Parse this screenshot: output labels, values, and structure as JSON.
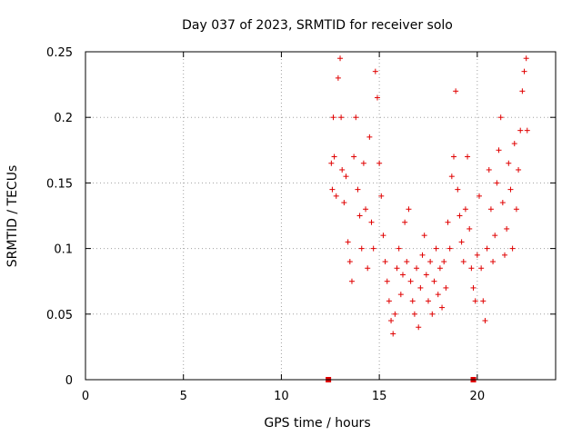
{
  "chart_data": {
    "type": "scatter",
    "title": "Day 037 of 2023, SRMTID for receiver solo",
    "xlabel": "GPS time / hours",
    "ylabel": "SRMTID / TECUs",
    "xlim": [
      0,
      24
    ],
    "ylim": [
      0,
      0.25
    ],
    "x_ticks": [
      0,
      5,
      10,
      15,
      20
    ],
    "x_tick_labels": [
      "0",
      "5",
      "10",
      "15",
      "20"
    ],
    "y_ticks": [
      0,
      0.05,
      0.1,
      0.15,
      0.2,
      0.25
    ],
    "y_tick_labels": [
      "0",
      "0.05",
      "0.1",
      "0.15",
      "0.2",
      "0.25"
    ],
    "grid": true,
    "marker": "+",
    "color": "#e00000",
    "baseline_markers": [
      {
        "x": 12.4,
        "y": 0
      },
      {
        "x": 19.8,
        "y": 0
      }
    ],
    "series_segments": [
      {
        "x": 12.55,
        "y": 0.165
      },
      {
        "x": 12.6,
        "y": 0.145
      },
      {
        "x": 12.65,
        "y": 0.2
      },
      {
        "x": 12.7,
        "y": 0.17
      },
      {
        "x": 12.8,
        "y": 0.14
      },
      {
        "x": 12.9,
        "y": 0.23
      },
      {
        "x": 13.0,
        "y": 0.245
      },
      {
        "x": 13.05,
        "y": 0.2
      },
      {
        "x": 13.1,
        "y": 0.16
      },
      {
        "x": 13.2,
        "y": 0.135
      },
      {
        "x": 13.3,
        "y": 0.155
      },
      {
        "x": 13.4,
        "y": 0.105
      },
      {
        "x": 13.5,
        "y": 0.09
      },
      {
        "x": 13.6,
        "y": 0.075
      },
      {
        "x": 13.7,
        "y": 0.17
      },
      {
        "x": 13.8,
        "y": 0.2
      },
      {
        "x": 13.9,
        "y": 0.145
      },
      {
        "x": 14.0,
        "y": 0.125
      },
      {
        "x": 14.1,
        "y": 0.1
      },
      {
        "x": 14.2,
        "y": 0.165
      },
      {
        "x": 14.3,
        "y": 0.13
      },
      {
        "x": 14.4,
        "y": 0.085
      },
      {
        "x": 14.5,
        "y": 0.185
      },
      {
        "x": 14.6,
        "y": 0.12
      },
      {
        "x": 14.7,
        "y": 0.1
      },
      {
        "x": 14.8,
        "y": 0.235
      },
      {
        "x": 14.9,
        "y": 0.215
      },
      {
        "x": 15.0,
        "y": 0.165
      },
      {
        "x": 15.1,
        "y": 0.14
      },
      {
        "x": 15.2,
        "y": 0.11
      },
      {
        "x": 15.3,
        "y": 0.09
      },
      {
        "x": 15.4,
        "y": 0.075
      },
      {
        "x": 15.5,
        "y": 0.06
      },
      {
        "x": 15.6,
        "y": 0.045
      },
      {
        "x": 15.7,
        "y": 0.035
      },
      {
        "x": 15.8,
        "y": 0.05
      },
      {
        "x": 15.9,
        "y": 0.085
      },
      {
        "x": 16.0,
        "y": 0.1
      },
      {
        "x": 16.1,
        "y": 0.065
      },
      {
        "x": 16.2,
        "y": 0.08
      },
      {
        "x": 16.3,
        "y": 0.12
      },
      {
        "x": 16.4,
        "y": 0.09
      },
      {
        "x": 16.5,
        "y": 0.13
      },
      {
        "x": 16.6,
        "y": 0.075
      },
      {
        "x": 16.7,
        "y": 0.06
      },
      {
        "x": 16.8,
        "y": 0.05
      },
      {
        "x": 16.9,
        "y": 0.085
      },
      {
        "x": 17.0,
        "y": 0.04
      },
      {
        "x": 17.1,
        "y": 0.07
      },
      {
        "x": 17.2,
        "y": 0.095
      },
      {
        "x": 17.3,
        "y": 0.11
      },
      {
        "x": 17.4,
        "y": 0.08
      },
      {
        "x": 17.5,
        "y": 0.06
      },
      {
        "x": 17.6,
        "y": 0.09
      },
      {
        "x": 17.7,
        "y": 0.05
      },
      {
        "x": 17.8,
        "y": 0.075
      },
      {
        "x": 17.9,
        "y": 0.1
      },
      {
        "x": 18.0,
        "y": 0.065
      },
      {
        "x": 18.1,
        "y": 0.085
      },
      {
        "x": 18.2,
        "y": 0.055
      },
      {
        "x": 18.3,
        "y": 0.09
      },
      {
        "x": 18.4,
        "y": 0.07
      },
      {
        "x": 18.5,
        "y": 0.12
      },
      {
        "x": 18.6,
        "y": 0.1
      },
      {
        "x": 18.7,
        "y": 0.155
      },
      {
        "x": 18.8,
        "y": 0.17
      },
      {
        "x": 18.9,
        "y": 0.22
      },
      {
        "x": 19.0,
        "y": 0.145
      },
      {
        "x": 19.1,
        "y": 0.125
      },
      {
        "x": 19.2,
        "y": 0.105
      },
      {
        "x": 19.3,
        "y": 0.09
      },
      {
        "x": 19.4,
        "y": 0.13
      },
      {
        "x": 19.5,
        "y": 0.17
      },
      {
        "x": 19.6,
        "y": 0.115
      },
      {
        "x": 19.7,
        "y": 0.085
      },
      {
        "x": 19.8,
        "y": 0.07
      },
      {
        "x": 19.9,
        "y": 0.06
      },
      {
        "x": 20.0,
        "y": 0.095
      },
      {
        "x": 20.1,
        "y": 0.14
      },
      {
        "x": 20.2,
        "y": 0.085
      },
      {
        "x": 20.3,
        "y": 0.06
      },
      {
        "x": 20.4,
        "y": 0.045
      },
      {
        "x": 20.5,
        "y": 0.1
      },
      {
        "x": 20.6,
        "y": 0.16
      },
      {
        "x": 20.7,
        "y": 0.13
      },
      {
        "x": 20.8,
        "y": 0.09
      },
      {
        "x": 20.9,
        "y": 0.11
      },
      {
        "x": 21.0,
        "y": 0.15
      },
      {
        "x": 21.1,
        "y": 0.175
      },
      {
        "x": 21.2,
        "y": 0.2
      },
      {
        "x": 21.3,
        "y": 0.135
      },
      {
        "x": 21.4,
        "y": 0.095
      },
      {
        "x": 21.5,
        "y": 0.115
      },
      {
        "x": 21.6,
        "y": 0.165
      },
      {
        "x": 21.7,
        "y": 0.145
      },
      {
        "x": 21.8,
        "y": 0.1
      },
      {
        "x": 21.9,
        "y": 0.18
      },
      {
        "x": 22.0,
        "y": 0.13
      },
      {
        "x": 22.1,
        "y": 0.16
      },
      {
        "x": 22.2,
        "y": 0.19
      },
      {
        "x": 22.3,
        "y": 0.22
      },
      {
        "x": 22.4,
        "y": 0.235
      },
      {
        "x": 22.5,
        "y": 0.245
      },
      {
        "x": 22.55,
        "y": 0.19
      }
    ]
  }
}
